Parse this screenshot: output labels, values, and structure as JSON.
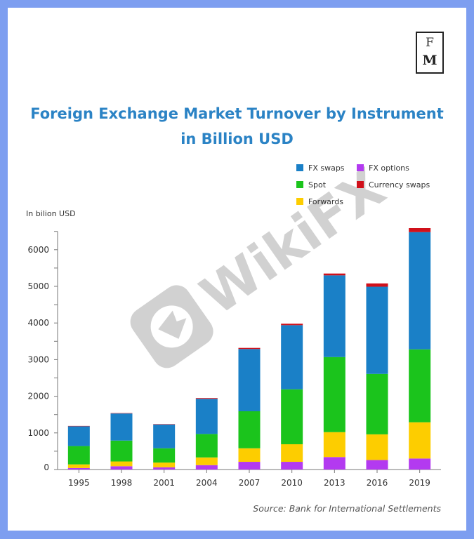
{
  "logo": {
    "top": "F",
    "bottom": "M"
  },
  "title_line1": "Foreign Exchange Market Turnover by Instrument",
  "title_line2": "in Billion USD",
  "source": "Source: Bank for International Settlements",
  "watermark": "WikiFX",
  "colors": {
    "fx_swaps": "#1a80c7",
    "spot": "#1bc41c",
    "forwards": "#fdcd00",
    "fx_options": "#b33af0",
    "currency_swaps": "#d0101a",
    "axis": "#777777",
    "text": "#333333"
  },
  "chart_data": {
    "type": "bar",
    "stacked": true,
    "ylabel": "In bilion USD",
    "xlabel": "",
    "ylim": [
      0,
      6500
    ],
    "yticks": [
      0,
      1000,
      2000,
      3000,
      4000,
      5000,
      6000
    ],
    "legend_position": "top-right",
    "categories": [
      "1995",
      "1998",
      "2001",
      "2004",
      "2007",
      "2010",
      "2013",
      "2016",
      "2019"
    ],
    "series": [
      {
        "name": "FX options",
        "key": "fx_options",
        "values": [
          40,
          90,
          60,
          120,
          210,
          210,
          340,
          260,
          300
        ]
      },
      {
        "name": "Forwards",
        "key": "forwards",
        "values": [
          100,
          130,
          130,
          210,
          370,
          480,
          680,
          700,
          990
        ]
      },
      {
        "name": "Spot",
        "key": "spot",
        "values": [
          500,
          570,
          390,
          640,
          1010,
          1500,
          2050,
          1650,
          1990
        ]
      },
      {
        "name": "FX swaps",
        "key": "fx_swaps",
        "values": [
          540,
          740,
          650,
          960,
          1700,
          1750,
          2230,
          2380,
          3200
        ]
      },
      {
        "name": "Currency swaps",
        "key": "currency_swaps",
        "values": [
          10,
          10,
          10,
          20,
          30,
          40,
          50,
          90,
          110
        ]
      }
    ],
    "legend_order": [
      "FX swaps",
      "Spot",
      "Forwards",
      "FX options",
      "Currency swaps"
    ]
  }
}
